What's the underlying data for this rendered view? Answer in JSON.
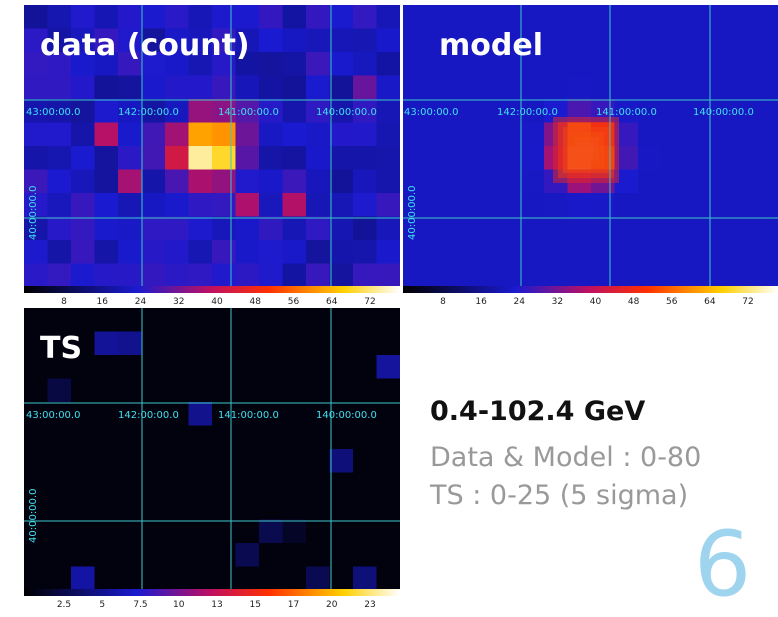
{
  "panels": [
    {
      "title": "data (count)",
      "ra_labels": [
        "43:00:00.0",
        "142:00:00.0",
        "141:00:00.0",
        "140:00:00.0"
      ],
      "dec_label": "40:00:00.0",
      "colorbar_ticks": [
        8,
        16,
        24,
        32,
        40,
        48,
        56,
        64,
        72
      ]
    },
    {
      "title": "model",
      "ra_labels": [
        "43:00:00.0",
        "142:00:00.0",
        "141:00:00.0",
        "140:00:00.0"
      ],
      "dec_label": "40:00:00.0",
      "colorbar_ticks": [
        8,
        16,
        24,
        32,
        40,
        48,
        56,
        64,
        72
      ]
    },
    {
      "title": "TS",
      "ra_labels": [
        "43:00:00.0",
        "142:00:00.0",
        "141:00:00.0",
        "140:00:00.0"
      ],
      "dec_label": "40:00:00.0",
      "colorbar_ticks": [
        2.5,
        5,
        7.5,
        10,
        13,
        15,
        17,
        20,
        23
      ]
    }
  ],
  "text": {
    "energy": "0.4-102.4 GeV",
    "range_data_model": "Data & Model :  0-80",
    "range_ts": "TS : 0-25 (5 sigma)",
    "page_number": "6"
  }
}
